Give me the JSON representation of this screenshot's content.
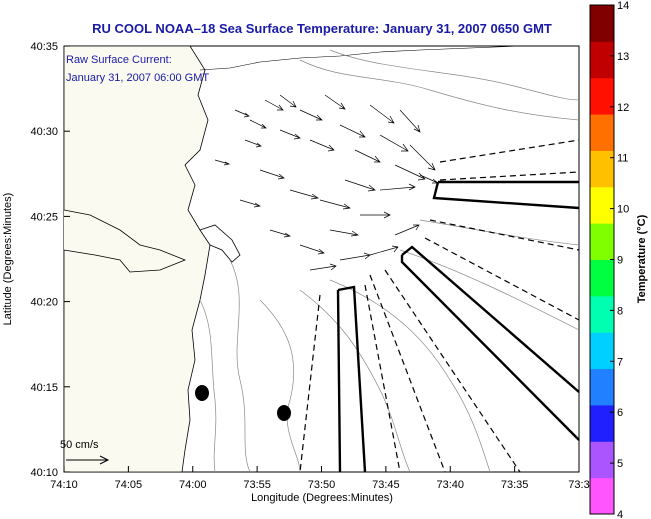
{
  "title": "RU COOL  NOAA–18  Sea Surface Temperature:  January 31, 2007 0650 GMT",
  "current_label": {
    "line1": "Raw Surface Current:",
    "line2": "January 31, 2007 06:00 GMT"
  },
  "scale_arrow_label": "50 cm/s",
  "axes": {
    "xlabel": "Longitude (Degrees:Minutes)",
    "ylabel": "Latitude (Degrees:Minutes)",
    "x_ticks": [
      "74:10",
      "74:05",
      "74:00",
      "73:55",
      "73:50",
      "73:45",
      "73:40",
      "73:35",
      "73:3"
    ],
    "y_ticks": [
      "40:35",
      "40:30",
      "40:25",
      "40:20",
      "40:15",
      "40:10"
    ]
  },
  "colorbar": {
    "label": "Temperature (°C)",
    "ticks": [
      "14",
      "13",
      "12",
      "11",
      "10",
      "9",
      "8",
      "7",
      "6",
      "5",
      "4"
    ],
    "colors": [
      "#ff55ff",
      "#aa55ff",
      "#2020ff",
      "#2080ff",
      "#00d0ff",
      "#00ffb0",
      "#00ff40",
      "#80ff00",
      "#ffff00",
      "#ffc000",
      "#ff7000",
      "#ff1000",
      "#c00000",
      "#800000"
    ]
  }
}
